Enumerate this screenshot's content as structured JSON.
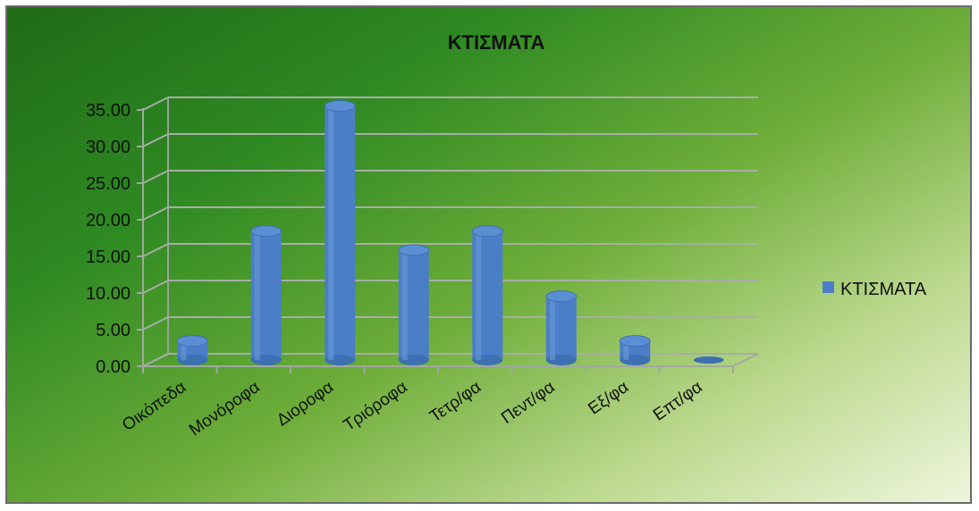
{
  "chart_data": {
    "type": "bar",
    "title": "ΚΤΙΣΜΑΤΑ",
    "categories": [
      "Οικόπεδα",
      "Μονόροφα",
      "Διοροφα",
      "Τριόροφα",
      "Τετρ/φα",
      "Πεντ/φα",
      "Εξ/φα",
      "Επτ/φα"
    ],
    "series": [
      {
        "name": "ΚΤΙΣΜΑΤΑ",
        "values": [
          2.6,
          17.6,
          34.7,
          15.0,
          17.6,
          8.7,
          2.6,
          0.0
        ]
      }
    ],
    "ylim": [
      0,
      35
    ],
    "yticks": [
      "0.00",
      "5.00",
      "10.00",
      "15.00",
      "20.00",
      "25.00",
      "30.00",
      "35.00"
    ],
    "grid": true,
    "legend_position": "right",
    "bar_color": "#4a7ec7",
    "xlabel": "",
    "ylabel": ""
  }
}
